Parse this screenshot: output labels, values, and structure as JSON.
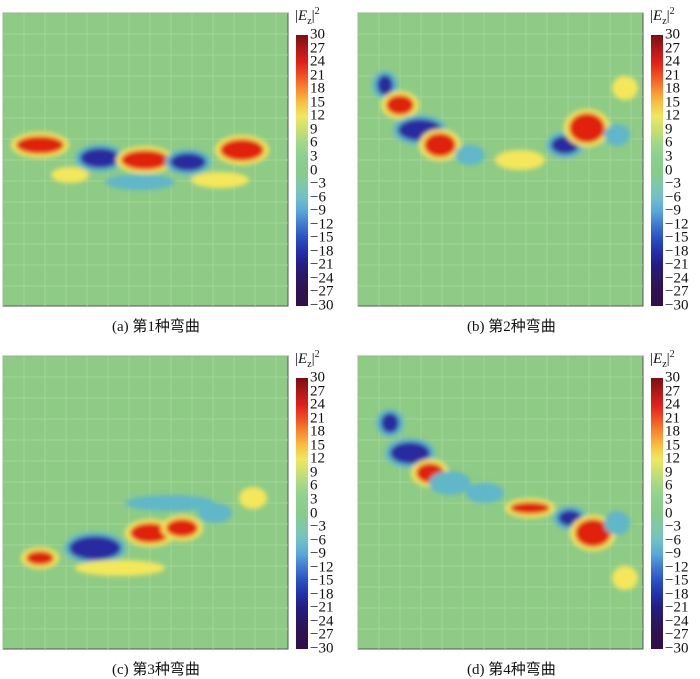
{
  "panels": [
    {
      "id": "a",
      "caption": "(a) 第1种弯曲"
    },
    {
      "id": "b",
      "caption": "(b) 第2种弯曲"
    },
    {
      "id": "c",
      "caption": "(c) 第3种弯曲"
    },
    {
      "id": "d",
      "caption": "(d) 第4种弯曲"
    }
  ],
  "colorbar": {
    "title_prefix": "|",
    "title_var": "E",
    "title_sub": "z",
    "title_suffix": "|",
    "title_sup": "2",
    "ticks": [
      "30",
      "27",
      "24",
      "21",
      "18",
      "15",
      "12",
      "9",
      "6",
      "3",
      "0",
      "−3",
      "−6",
      "−9",
      "−12",
      "−15",
      "−18",
      "−21",
      "−24",
      "−27",
      "−30"
    ],
    "colors": [
      "#7a1010",
      "#b01818",
      "#e0201a",
      "#f05020",
      "#f88a30",
      "#f8c040",
      "#eee860",
      "#c8e070",
      "#a0d888",
      "#8cd090",
      "#88cc88",
      "#80c8a8",
      "#70c0c8",
      "#58a8d8",
      "#4078d0",
      "#2850c0",
      "#2230a8",
      "#241c80",
      "#2a1860",
      "#301050",
      "#301048"
    ]
  },
  "field_colors": {
    "background": "#8ecb85",
    "positive_strong": "#e02010",
    "positive_mid": "#f5e75a",
    "negative_strong": "#2a2aa0",
    "negative_mid": "#5fb7c9"
  }
}
